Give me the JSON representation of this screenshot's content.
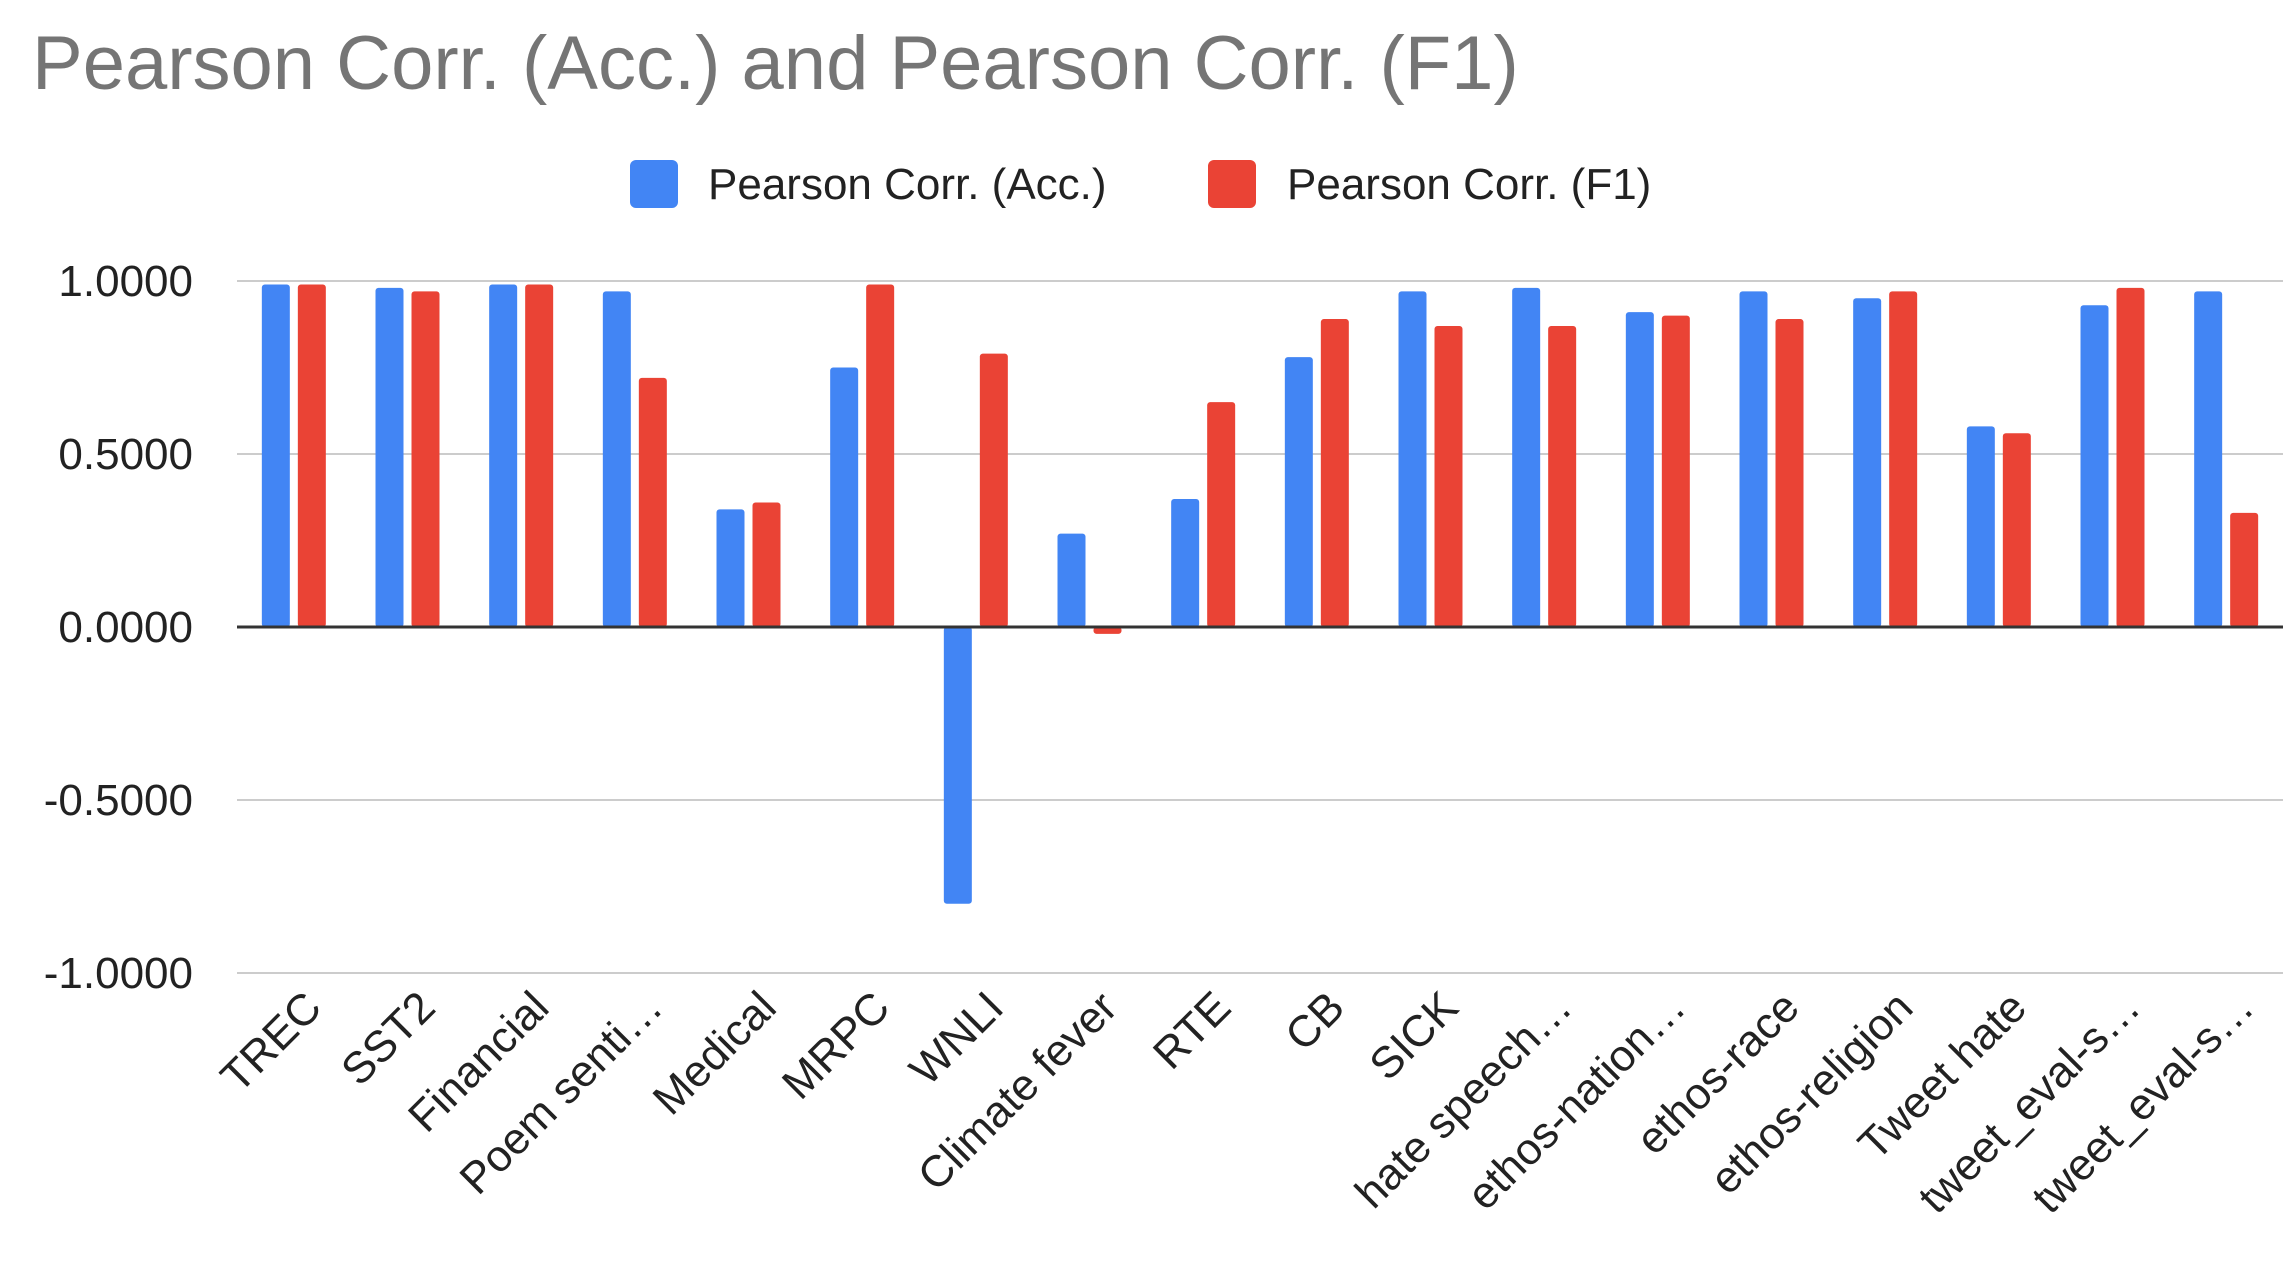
{
  "chart_data": {
    "type": "bar",
    "title": "Pearson Corr. (Acc.) and Pearson Corr. (F1)",
    "xlabel": "",
    "ylabel": "",
    "ylim": [
      -1.0,
      1.0
    ],
    "yticks": [
      1.0,
      0.5,
      0.0,
      -0.5,
      -1.0
    ],
    "ytick_labels": [
      "1.0000",
      "0.5000",
      "0.0000",
      "-0.5000",
      "-1.0000"
    ],
    "grid": true,
    "legend_position": "top-center",
    "categories": [
      "TREC",
      "SST2",
      "Financial",
      "Poem senti…",
      "Medical",
      "MRPC",
      "WNLI",
      "Climate fever",
      "RTE",
      "CB",
      "SICK",
      "hate speech…",
      "ethos-nation…",
      "ethos-race",
      "ethos-religion",
      "Tweet hate",
      "tweet_eval-s…",
      "tweet_eval-s…"
    ],
    "series": [
      {
        "name": "Pearson Corr. (Acc.)",
        "color": "#4285F4",
        "values": [
          0.99,
          0.98,
          0.99,
          0.97,
          0.34,
          0.75,
          -0.8,
          0.27,
          0.37,
          0.78,
          0.97,
          0.98,
          0.91,
          0.97,
          0.95,
          0.58,
          0.93,
          0.97
        ]
      },
      {
        "name": "Pearson Corr. (F1)",
        "color": "#EA4335",
        "values": [
          0.99,
          0.97,
          0.99,
          0.72,
          0.36,
          0.99,
          0.79,
          -0.02,
          0.65,
          0.89,
          0.87,
          0.87,
          0.9,
          0.89,
          0.97,
          0.56,
          0.98,
          0.33
        ]
      }
    ]
  }
}
